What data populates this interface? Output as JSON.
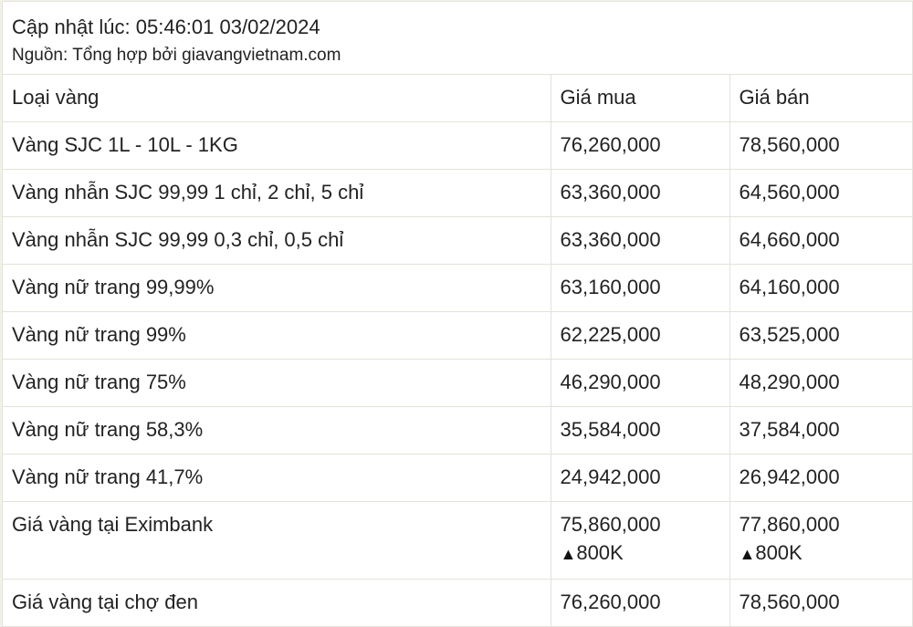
{
  "header": {
    "updated": "Cập nhật lúc: 05:46:01 03/02/2024",
    "source": "Nguồn: Tổng hợp bởi giavangvietnam.com"
  },
  "table": {
    "columns": [
      "Loại vàng",
      "Giá mua",
      "Giá bán"
    ],
    "rows": [
      {
        "type": "Vàng SJC 1L - 10L - 1KG",
        "buy": "76,260,000",
        "sell": "78,560,000"
      },
      {
        "type": "Vàng nhẫn SJC 99,99 1 chỉ, 2 chỉ, 5 chỉ",
        "buy": "63,360,000",
        "sell": "64,560,000"
      },
      {
        "type": "Vàng nhẫn SJC 99,99 0,3 chỉ, 0,5 chỉ",
        "buy": "63,360,000",
        "sell": "64,660,000"
      },
      {
        "type": "Vàng nữ trang 99,99%",
        "buy": "63,160,000",
        "sell": "64,160,000"
      },
      {
        "type": "Vàng nữ trang 99%",
        "buy": "62,225,000",
        "sell": "63,525,000"
      },
      {
        "type": "Vàng nữ trang 75%",
        "buy": "46,290,000",
        "sell": "48,290,000"
      },
      {
        "type": "Vàng nữ trang 58,3%",
        "buy": "35,584,000",
        "sell": "37,584,000"
      },
      {
        "type": "Vàng nữ trang 41,7%",
        "buy": "24,942,000",
        "sell": "26,942,000"
      },
      {
        "type": "Giá vàng tại Eximbank",
        "buy": "75,860,000",
        "sell": "77,860,000",
        "buy_change": "800K",
        "sell_change": "800K",
        "change_icon": "up-triangle-icon"
      },
      {
        "type": "Giá vàng tại chợ đen",
        "buy": "76,260,000",
        "sell": "78,560,000"
      }
    ]
  }
}
